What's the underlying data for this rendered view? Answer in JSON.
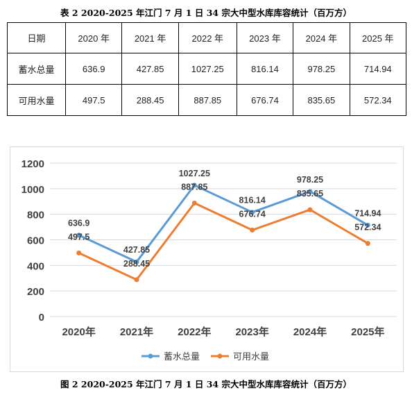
{
  "table": {
    "caption": "表 2 2020-2025 年江门 7 月 1 日 34 宗大中型水库库容统计（百万方）",
    "header": [
      "日期",
      "2020 年",
      "2021 年",
      "2022 年",
      "2023 年",
      "2024 年",
      "2025 年"
    ],
    "rows": [
      {
        "label": "蓄水总量",
        "values": [
          "636.9",
          "427.85",
          "1027.25",
          "816.14",
          "978.25",
          "714.94"
        ]
      },
      {
        "label": "可用水量",
        "values": [
          "497.5",
          "288.45",
          "887.85",
          "676.74",
          "835.65",
          "572.34"
        ]
      }
    ]
  },
  "figure_caption": "图 2 2020-2025 年江门 7 月 1 日 34 宗大中型水库库容统计（百万方）",
  "chart_data": {
    "type": "line",
    "categories": [
      "2020年",
      "2021年",
      "2022年",
      "2023年",
      "2024年",
      "2025年"
    ],
    "series": [
      {
        "name": "蓄水总量",
        "values": [
          636.9,
          427.85,
          1027.25,
          816.14,
          978.25,
          714.94
        ],
        "color": "#5b9bd5"
      },
      {
        "name": "可用水量",
        "values": [
          497.5,
          288.45,
          887.85,
          676.74,
          835.65,
          572.34
        ],
        "color": "#ed7d31"
      }
    ],
    "y_ticks": [
      "0",
      "200",
      "400",
      "600",
      "800",
      "1000",
      "1200"
    ],
    "ylim": [
      0,
      1200
    ],
    "grid": true,
    "legend_position": "bottom",
    "title": "",
    "xlabel": "",
    "ylabel": ""
  }
}
